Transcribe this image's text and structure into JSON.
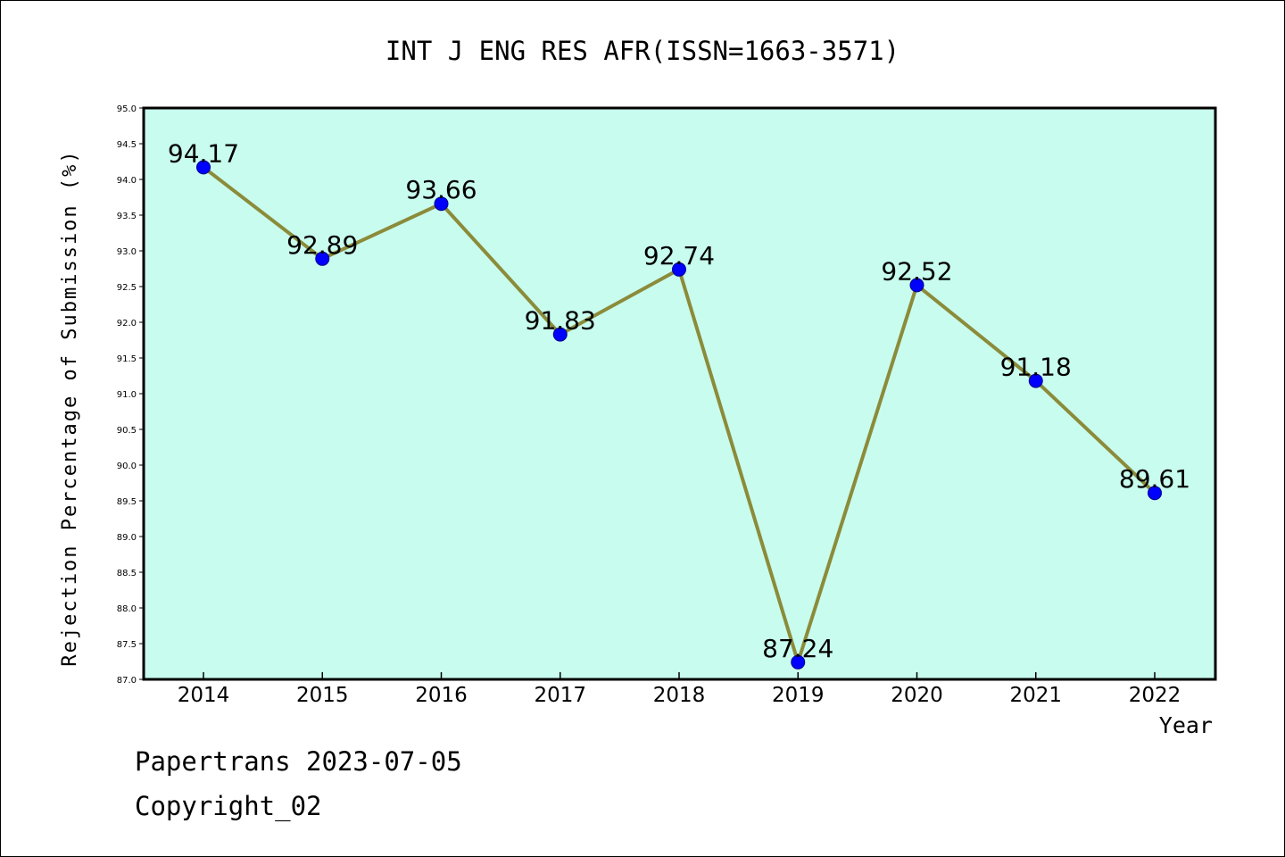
{
  "chart_data": {
    "type": "line",
    "title": "INT J ENG RES AFR(ISSN=1663-3571)",
    "xlabel": "Year",
    "ylabel": "Rejection Percentage of Submission (%)",
    "categories": [
      "2014",
      "2015",
      "2016",
      "2017",
      "2018",
      "2019",
      "2020",
      "2021",
      "2022"
    ],
    "values": [
      94.17,
      92.89,
      93.66,
      91.83,
      92.74,
      87.24,
      92.52,
      91.18,
      89.61
    ],
    "data_labels": [
      "94.17",
      "92.89",
      "93.66",
      "91.83",
      "92.74",
      "87.24",
      "92.52",
      "91.18",
      "89.61"
    ],
    "ylim": [
      87.0,
      95.0
    ],
    "yticks": [
      "87.0",
      "87.5",
      "88.0",
      "88.5",
      "89.0",
      "89.5",
      "90.0",
      "90.5",
      "91.0",
      "91.5",
      "92.0",
      "92.5",
      "93.0",
      "93.5",
      "94.0",
      "94.5",
      "95.0"
    ],
    "grid": false,
    "colors": {
      "plot_background": "#c8fcee",
      "line": "#8b8b3a",
      "marker": "#0000ff"
    }
  },
  "footer": {
    "source": "Papertrans 2023-07-05",
    "copyright": "Copyright_02"
  }
}
